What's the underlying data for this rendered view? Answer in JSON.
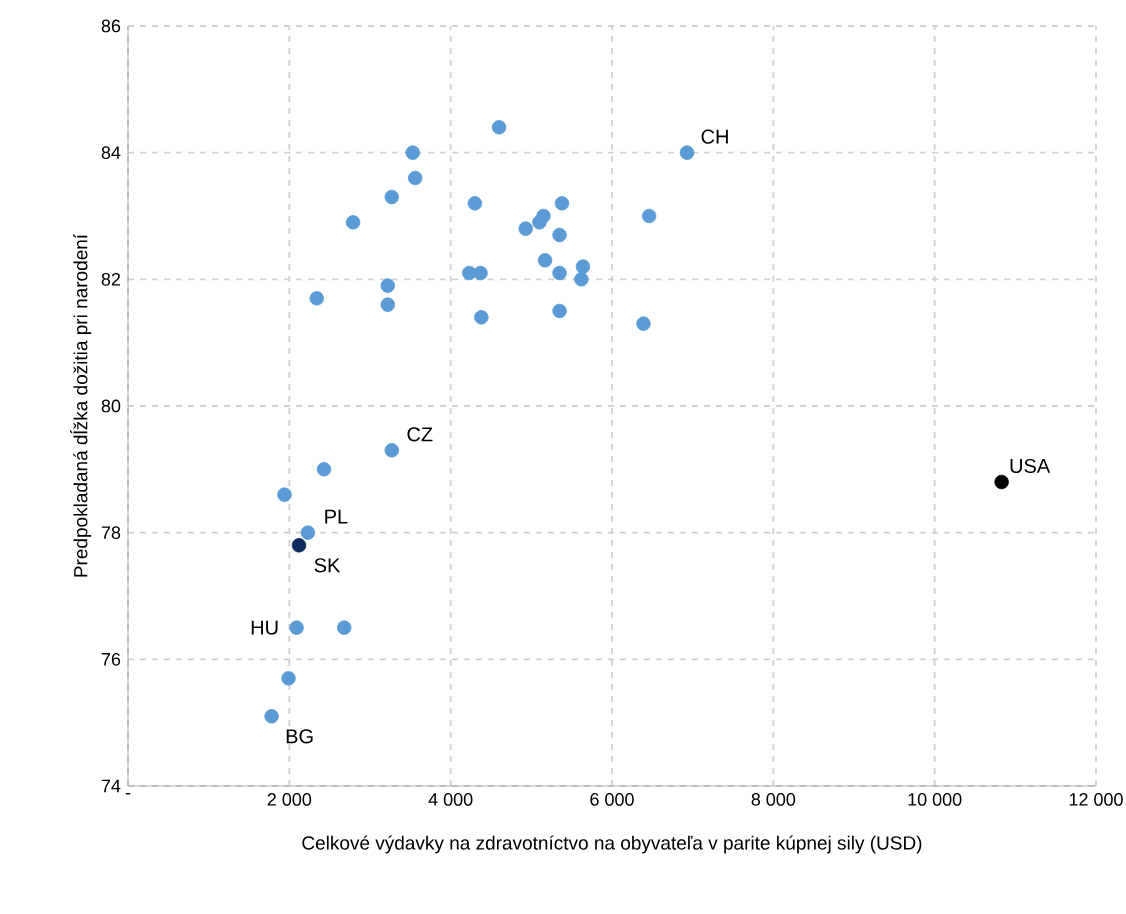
{
  "chart_data": {
    "type": "scatter",
    "xlabel": "Celkové výdavky na zdravotníctvo na obyvateľa v parite kúpnej sily (USD)",
    "ylabel": "Predpokladaná dĺžka dožitia pri narodení",
    "marker": "circle",
    "grid": true,
    "xlim": [
      0,
      12000
    ],
    "ylim": [
      74,
      86
    ],
    "xticks": [
      {
        "value": 0,
        "label": "-"
      },
      {
        "value": 2000,
        "label": "2 000"
      },
      {
        "value": 4000,
        "label": "4 000"
      },
      {
        "value": 6000,
        "label": "6 000"
      },
      {
        "value": 8000,
        "label": "8 000"
      },
      {
        "value": 10000,
        "label": "10 000"
      },
      {
        "value": 12000,
        "label": "12 000"
      }
    ],
    "yticks": [
      74,
      76,
      78,
      80,
      82,
      84,
      86
    ],
    "series": [
      {
        "color": "#5b9bd5",
        "x": [
          4600,
          3530,
          3560,
          3270,
          2790,
          4300,
          5380,
          5150,
          5100,
          4930,
          5350,
          6460,
          6930,
          5170,
          5350,
          5640,
          5620,
          4230,
          4370,
          2340,
          3220,
          3220,
          4380,
          5350,
          6390,
          3270,
          2430,
          1940,
          2230,
          2090,
          2680,
          1990,
          1780
        ],
        "values": [
          84.4,
          84.0,
          83.6,
          83.3,
          82.9,
          83.2,
          83.2,
          83.0,
          82.9,
          82.8,
          82.7,
          83.0,
          84.0,
          82.3,
          82.1,
          82.2,
          82.0,
          82.1,
          82.1,
          81.7,
          81.9,
          81.6,
          81.4,
          81.5,
          81.3,
          79.3,
          79.0,
          78.6,
          78.0,
          76.5,
          76.5,
          75.7,
          75.1
        ]
      },
      {
        "color": "#0d2b5e",
        "x": [
          2120
        ],
        "values": [
          77.8
        ]
      },
      {
        "color": "#000000",
        "x": [
          10830
        ],
        "values": [
          78.8
        ]
      }
    ],
    "annotations": [
      {
        "text": "CH",
        "x": 6930,
        "y": 84.0
      },
      {
        "text": "CZ",
        "x": 3270,
        "y": 79.3
      },
      {
        "text": "PL",
        "x": 2230,
        "y": 78.0
      },
      {
        "text": "SK",
        "x": 2120,
        "y": 77.8
      },
      {
        "text": "HU",
        "x": 2090,
        "y": 76.5
      },
      {
        "text": "BG",
        "x": 1780,
        "y": 75.1
      },
      {
        "text": "USA",
        "x": 10830,
        "y": 78.8
      }
    ]
  }
}
